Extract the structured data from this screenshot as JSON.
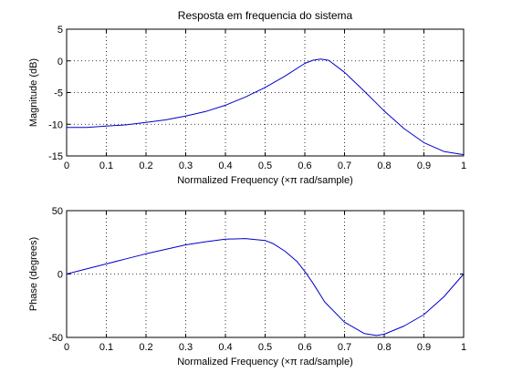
{
  "title": "Resposta em frequencia do sistema",
  "chart_data": [
    {
      "type": "line",
      "title": "Resposta em frequencia do sistema",
      "xlabel": "Normalized Frequency  (×π rad/sample)",
      "ylabel": "Magnitude (dB)",
      "xlim": [
        0,
        1
      ],
      "ylim": [
        -15,
        5
      ],
      "xticks": [
        "0",
        "0.1",
        "0.2",
        "0.3",
        "0.4",
        "0.5",
        "0.6",
        "0.7",
        "0.8",
        "0.9",
        "1"
      ],
      "yticks": [
        "5",
        "0",
        "-5",
        "-10",
        "-15"
      ],
      "grid": true,
      "line_color": "#0000cc",
      "series": [
        {
          "x": [
            0,
            0.05,
            0.1,
            0.15,
            0.2,
            0.25,
            0.3,
            0.35,
            0.4,
            0.45,
            0.5,
            0.55,
            0.6,
            0.62,
            0.64,
            0.66,
            0.7,
            0.75,
            0.8,
            0.85,
            0.9,
            0.95,
            1.0
          ],
          "values": [
            -10.5,
            -10.5,
            -10.3,
            -10.1,
            -9.7,
            -9.3,
            -8.7,
            -8.0,
            -7.0,
            -5.7,
            -4.2,
            -2.4,
            -0.4,
            0.1,
            0.3,
            0.1,
            -1.8,
            -4.8,
            -7.9,
            -10.7,
            -12.9,
            -14.3,
            -14.8
          ]
        }
      ]
    },
    {
      "type": "line",
      "title": "",
      "xlabel": "Normalized Frequency  (×π rad/sample)",
      "ylabel": "Phase (degrees)",
      "xlim": [
        0,
        1
      ],
      "ylim": [
        -50,
        50
      ],
      "xticks": [
        "0",
        "0.1",
        "0.2",
        "0.3",
        "0.4",
        "0.5",
        "0.6",
        "0.7",
        "0.8",
        "0.9",
        "1"
      ],
      "yticks": [
        "50",
        "0",
        "-50"
      ],
      "grid": true,
      "line_color": "#0000cc",
      "series": [
        {
          "x": [
            0,
            0.05,
            0.1,
            0.15,
            0.2,
            0.25,
            0.3,
            0.35,
            0.4,
            0.45,
            0.5,
            0.52,
            0.55,
            0.58,
            0.6,
            0.62,
            0.65,
            0.7,
            0.75,
            0.78,
            0.8,
            0.85,
            0.9,
            0.95,
            1.0
          ],
          "values": [
            0,
            4,
            8,
            12,
            16,
            19.5,
            23,
            25.5,
            27.5,
            28,
            26.5,
            24,
            18,
            10,
            2,
            -7,
            -22,
            -38,
            -47,
            -48.5,
            -47.5,
            -41,
            -32,
            -18,
            0
          ]
        }
      ]
    }
  ]
}
